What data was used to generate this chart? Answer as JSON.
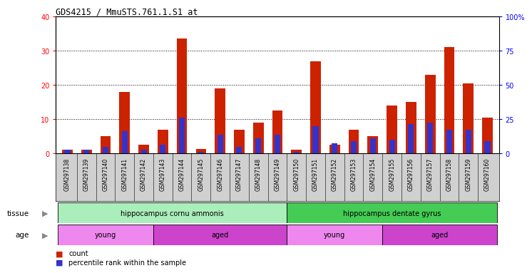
{
  "title": "GDS4215 / MmuSTS.761.1.S1_at",
  "samples": [
    "GSM297138",
    "GSM297139",
    "GSM297140",
    "GSM297141",
    "GSM297142",
    "GSM297143",
    "GSM297144",
    "GSM297145",
    "GSM297146",
    "GSM297147",
    "GSM297148",
    "GSM297149",
    "GSM297150",
    "GSM297151",
    "GSM297152",
    "GSM297153",
    "GSM297154",
    "GSM297155",
    "GSM297156",
    "GSM297157",
    "GSM297158",
    "GSM297159",
    "GSM297160"
  ],
  "count": [
    1,
    1,
    5,
    18,
    2.5,
    7,
    33.5,
    1.2,
    19,
    7,
    9,
    12.5,
    1,
    27,
    2.5,
    7,
    5,
    14,
    15,
    23,
    31,
    20.5,
    10.5
  ],
  "percentile": [
    1,
    1,
    2,
    6.5,
    1,
    2.5,
    10.5,
    0.5,
    5.5,
    2,
    4.5,
    5.5,
    0.5,
    8,
    3,
    3.5,
    4.5,
    4,
    8.5,
    9,
    7,
    7,
    3.5
  ],
  "ylim_left": [
    0,
    40
  ],
  "ylim_right": [
    0,
    100
  ],
  "yticks_left": [
    0,
    10,
    20,
    30,
    40
  ],
  "yticks_right": [
    0,
    25,
    50,
    75,
    100
  ],
  "yticklabels_left": [
    "0",
    "10",
    "20",
    "30",
    "40"
  ],
  "yticklabels_right": [
    "0",
    "25",
    "50",
    "75",
    "100%"
  ],
  "bar_width": 0.55,
  "count_color": "#cc2200",
  "percentile_color": "#3333cc",
  "plot_bg": "#ffffff",
  "xtick_bg": "#d0d0d0",
  "tissue_groups": [
    {
      "label": "hippocampus cornu ammonis",
      "start": 0,
      "end": 12,
      "color": "#aaeebb"
    },
    {
      "label": "hippocampus dentate gyrus",
      "start": 12,
      "end": 23,
      "color": "#44cc55"
    }
  ],
  "age_groups": [
    {
      "label": "young",
      "start": 0,
      "end": 5,
      "color": "#ee88ee"
    },
    {
      "label": "aged",
      "start": 5,
      "end": 12,
      "color": "#cc44cc"
    },
    {
      "label": "young",
      "start": 12,
      "end": 17,
      "color": "#ee88ee"
    },
    {
      "label": "aged",
      "start": 17,
      "end": 23,
      "color": "#cc44cc"
    }
  ],
  "tissue_label": "tissue",
  "age_label": "age",
  "legend_count": "count",
  "legend_percentile": "percentile rank within the sample",
  "grid_color": "#000000",
  "grid_linestyle": ":",
  "grid_linewidth": 0.7
}
